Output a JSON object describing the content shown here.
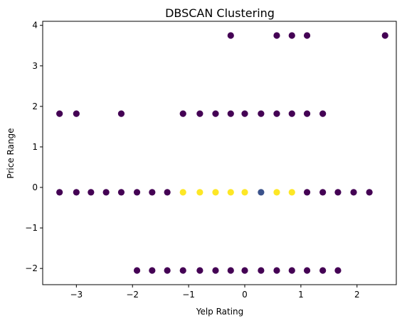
{
  "chart_data": {
    "type": "scatter",
    "title": "DBSCAN Clustering",
    "xlabel": "Yelp Rating",
    "ylabel": "Price Range",
    "xlim": [
      -3.6,
      2.7
    ],
    "ylim": [
      -2.4,
      4.1
    ],
    "xticks": [
      -3,
      -2,
      -1,
      0,
      1,
      2
    ],
    "yticks": [
      -2,
      -1,
      0,
      1,
      2,
      3,
      4
    ],
    "grid": false,
    "colors": {
      "cluster_noise": "#440154",
      "cluster_0": "#fde725",
      "cluster_1": "#3b528b"
    },
    "series": [
      {
        "cluster": "noise",
        "color_key": "cluster_noise",
        "x": [
          -0.25,
          0.57,
          0.84,
          1.11,
          2.5,
          -3.3,
          -3.0,
          -2.2,
          -1.1,
          -0.8,
          -0.52,
          -0.25,
          0.0,
          0.29,
          0.57,
          0.84,
          1.11,
          1.39,
          -3.3,
          -3.0,
          -2.74,
          -2.47,
          -2.2,
          -1.92,
          -1.65,
          -1.38,
          1.11,
          1.39,
          1.66,
          1.94,
          2.22,
          -1.92,
          -1.65,
          -1.38,
          -1.1,
          -0.8,
          -0.52,
          -0.25,
          0.0,
          0.29,
          0.57,
          0.84,
          1.11,
          1.39,
          1.66
        ],
        "y": [
          3.75,
          3.75,
          3.75,
          3.75,
          3.75,
          1.82,
          1.82,
          1.82,
          1.82,
          1.82,
          1.82,
          1.82,
          1.82,
          1.82,
          1.82,
          1.82,
          1.82,
          1.82,
          -0.12,
          -0.12,
          -0.12,
          -0.12,
          -0.12,
          -0.12,
          -0.12,
          -0.12,
          -0.12,
          -0.12,
          -0.12,
          -0.12,
          -0.12,
          -2.05,
          -2.05,
          -2.05,
          -2.05,
          -2.05,
          -2.05,
          -2.05,
          -2.05,
          -2.05,
          -2.05,
          -2.05,
          -2.05,
          -2.05,
          -2.05
        ]
      },
      {
        "cluster": "0",
        "color_key": "cluster_0",
        "x": [
          -1.1,
          -0.8,
          -0.52,
          -0.25,
          0.0,
          0.57,
          0.84
        ],
        "y": [
          -0.12,
          -0.12,
          -0.12,
          -0.12,
          -0.12,
          -0.12,
          -0.12
        ]
      },
      {
        "cluster": "1",
        "color_key": "cluster_1",
        "x": [
          0.29
        ],
        "y": [
          -0.12
        ]
      }
    ]
  }
}
